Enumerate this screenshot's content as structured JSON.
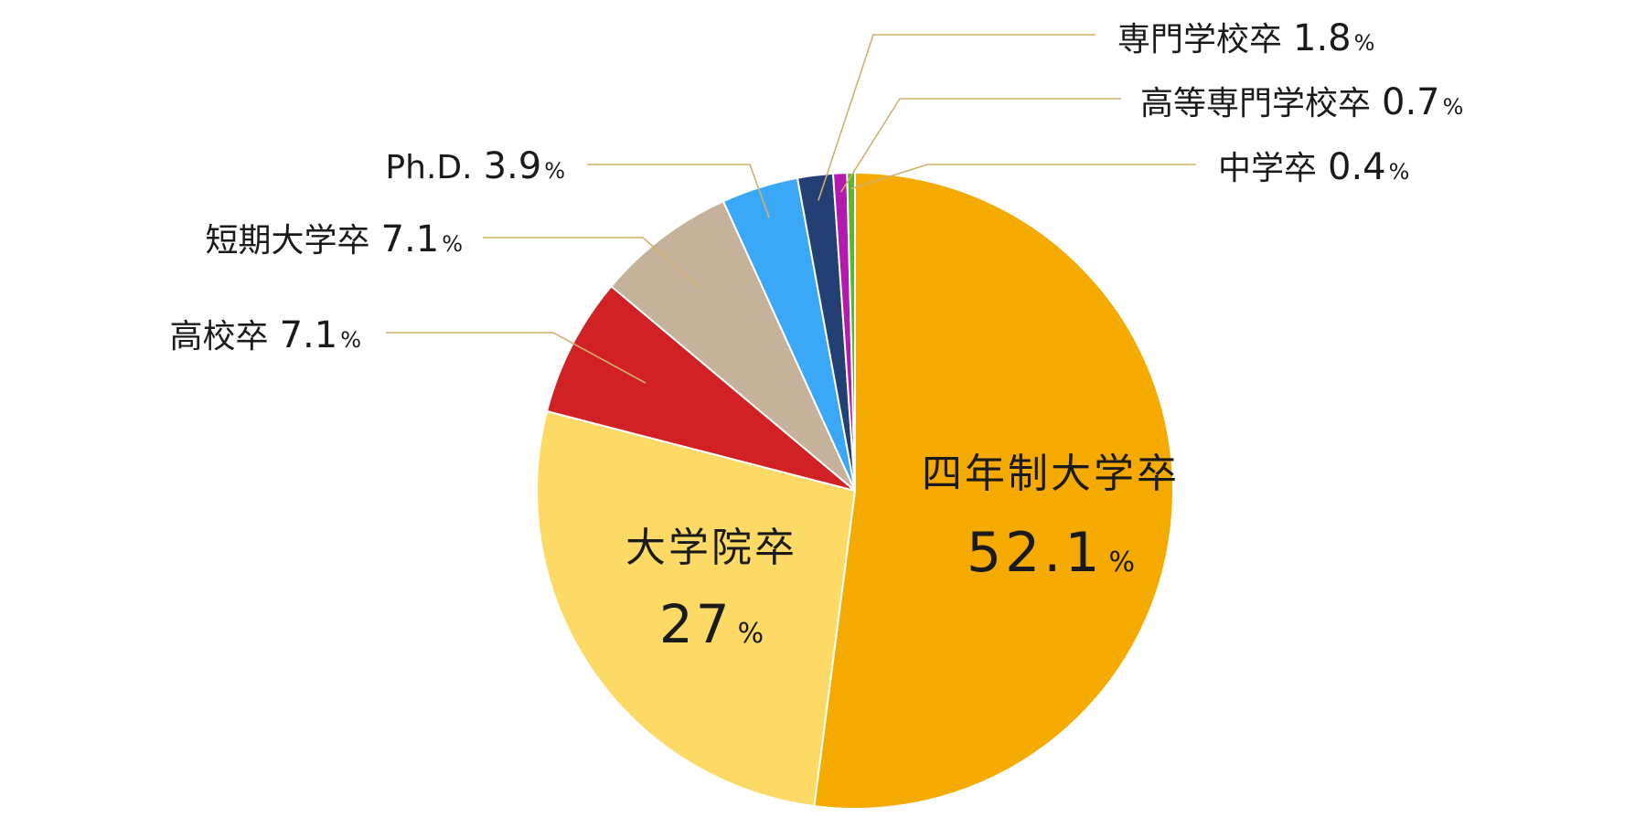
{
  "chart_data": {
    "type": "pie",
    "title": "",
    "unit": "%",
    "slices": [
      {
        "label": "四年制大学卒",
        "value": 52.1,
        "value_text": "52.1",
        "color": "#F5AA00"
      },
      {
        "label": "大学院卒",
        "value": 27,
        "value_text": "27",
        "color": "#FDDA65"
      },
      {
        "label": "高校卒",
        "value": 7.1,
        "value_text": "7.1",
        "color": "#D22124"
      },
      {
        "label": "短期大学卒",
        "value": 7.1,
        "value_text": "7.1",
        "color": "#C6B29A"
      },
      {
        "label": "Ph.D.",
        "value": 3.9,
        "value_text": "3.9",
        "color": "#3AA7F7"
      },
      {
        "label": "専門学校卒",
        "value": 1.8,
        "value_text": "1.8",
        "color": "#243F74"
      },
      {
        "label": "高等専門学校卒",
        "value": 0.7,
        "value_text": "0.7",
        "color": "#B31AAE"
      },
      {
        "label": "中学卒",
        "value": 0.4,
        "value_text": "0.4",
        "color": "#5DB52F"
      }
    ],
    "start_angle": "12 o'clock",
    "direction": "clockwise",
    "leader_line_color": "#D2B06A"
  }
}
